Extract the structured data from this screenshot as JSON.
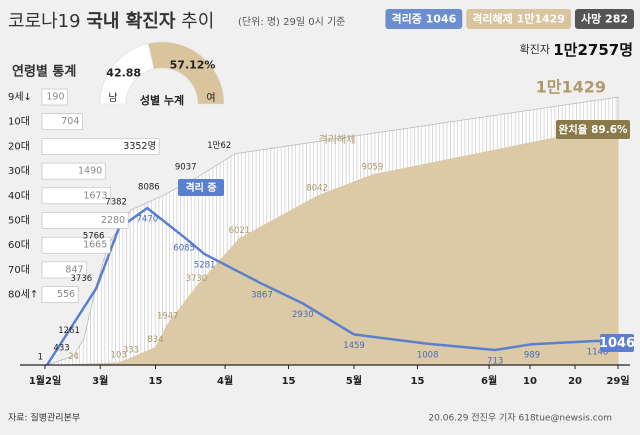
{
  "header": {
    "title_prefix": "코로나19",
    "title_emphasis": "국내 확진자",
    "title_suffix": "추이",
    "subtitle": "(단위: 명) 29일 0시 기준",
    "summary": [
      {
        "text": "격리중 1046",
        "color": "#6b8fce"
      },
      {
        "text": "격리해제 1만1429",
        "color": "#d9c49e"
      },
      {
        "text": "사망 282",
        "color": "#555555"
      }
    ],
    "total_label": "확진자",
    "total_value": "1만2757명"
  },
  "chart_data": [
    {
      "type": "area",
      "xlim": [
        0,
        140
      ],
      "ylim": [
        0,
        13000
      ],
      "xticks": [
        {
          "value": 0,
          "label": "1월2일"
        },
        {
          "value": 13.5,
          "label": "3월"
        },
        {
          "value": 27,
          "label": "15"
        },
        {
          "value": 44,
          "label": "4월"
        },
        {
          "value": 59.5,
          "label": "15"
        },
        {
          "value": 75.5,
          "label": "5월"
        },
        {
          "value": 91,
          "label": "15"
        },
        {
          "value": 108.5,
          "label": "6월"
        },
        {
          "value": 118.5,
          "label": "10"
        },
        {
          "value": 129.5,
          "label": "20"
        },
        {
          "value": 140,
          "label": "29일"
        }
      ],
      "series": [
        {
          "name": "확진자",
          "kind": "area",
          "color": "#ffffff",
          "label_color": "#222222",
          "x": [
            0.5,
            7,
            9.5,
            12.5,
            15.5,
            21,
            29,
            38,
            46.5,
            140
          ],
          "values": [
            1,
            433,
            1261,
            3736,
            5766,
            7382,
            8086,
            9037,
            10062,
            12757
          ],
          "value_labels": [
            "1",
            "433",
            "1261",
            "3736",
            "5766",
            "7382",
            "8086",
            "9037",
            "1만62",
            null
          ]
        },
        {
          "name": "격리해제",
          "kind": "area",
          "color": "#dccaa6",
          "label_color": "#b09a6a",
          "x": [
            7,
            18,
            21,
            27,
            30,
            37,
            47.5,
            66.5,
            80,
            140
          ],
          "values": [
            24,
            103,
            333,
            834,
            1947,
            3730,
            6021,
            8042,
            9059,
            11429
          ],
          "value_labels": [
            "24",
            "103",
            "333",
            "834",
            "1947",
            "3730",
            "6021",
            "8042",
            "9059",
            "1만1429"
          ]
        },
        {
          "name": "격리 중",
          "kind": "line",
          "color": "#5b7fcf",
          "label_color": "#4a6cb8",
          "x": [
            0.5,
            12.5,
            18,
            25,
            34,
            39,
            53,
            63,
            75.5,
            93.5,
            110,
            119,
            135,
            140
          ],
          "values": [
            1,
            3650,
            6500,
            7470,
            6085,
            5281,
            3867,
            2930,
            1459,
            1008,
            713,
            989,
            1148,
            1046
          ],
          "value_labels": [
            null,
            null,
            null,
            "7470",
            "6085",
            "5281",
            "3867",
            "2930",
            "1459",
            "1008",
            "713",
            "989",
            "1148",
            "1046"
          ]
        }
      ],
      "annotations": {
        "isolation": "격리 중",
        "released": "격리해제",
        "recovery_rate": "완치율 89.6%"
      }
    },
    {
      "type": "hbar",
      "title": "연령별 통계",
      "color": "#ffffff",
      "categories": [
        "9세↓",
        "10대",
        "20대",
        "30대",
        "40대",
        "50대",
        "60대",
        "70대",
        "80세↑"
      ],
      "values": [
        190,
        704,
        3352,
        1490,
        1673,
        2280,
        1665,
        847,
        556
      ],
      "value_labels": [
        "190",
        "704",
        "3352명",
        "1490",
        "1673",
        "2280",
        "1665",
        "847",
        "556"
      ]
    },
    {
      "type": "pie",
      "title": "성별 누계",
      "categories": [
        "남",
        "여"
      ],
      "values": [
        42.88,
        57.12
      ],
      "value_labels": [
        "42.88",
        "57.12%"
      ],
      "colors": [
        "#ffffff",
        "#d9c49e"
      ]
    }
  ],
  "footer": {
    "source": "자료: 질병관리본부",
    "credit": "20.06.29 전진우 기자  618tue@newsis.com"
  }
}
